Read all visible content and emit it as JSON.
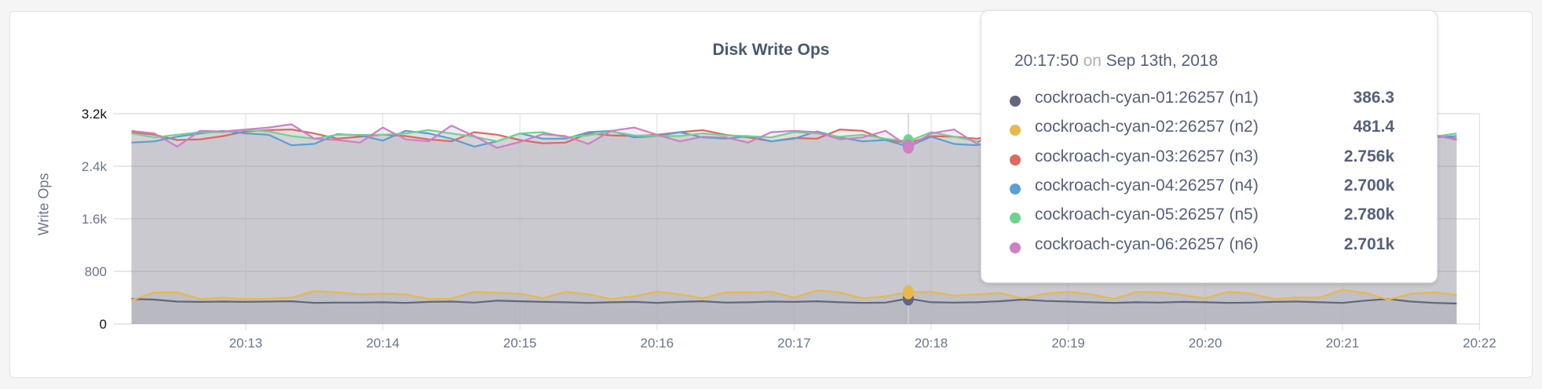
{
  "chart_data": {
    "type": "area",
    "title": "Disk Write Ops",
    "ylabel": "Write Ops",
    "xlabel": "",
    "ylim": [
      0,
      3200
    ],
    "yticks": [
      "0",
      "800",
      "1.6k",
      "2.4k",
      "3.2k"
    ],
    "ytick_values": [
      0,
      800,
      1600,
      2400,
      3200
    ],
    "xticks": [
      "20:13",
      "20:14",
      "20:15",
      "20:16",
      "20:17",
      "20:18",
      "20:19",
      "20:20",
      "20:21",
      "20:22"
    ],
    "grid": true,
    "x": [
      "20:12:10",
      "20:12:20",
      "20:12:30",
      "20:12:40",
      "20:12:50",
      "20:13:00",
      "20:13:10",
      "20:13:20",
      "20:13:30",
      "20:13:40",
      "20:13:50",
      "20:14:00",
      "20:14:10",
      "20:14:20",
      "20:14:30",
      "20:14:40",
      "20:14:50",
      "20:15:00",
      "20:15:10",
      "20:15:20",
      "20:15:30",
      "20:15:40",
      "20:15:50",
      "20:16:00",
      "20:16:10",
      "20:16:20",
      "20:16:30",
      "20:16:40",
      "20:16:50",
      "20:17:00",
      "20:17:10",
      "20:17:20",
      "20:17:30",
      "20:17:40",
      "20:17:50",
      "20:18:00",
      "20:18:10",
      "20:18:20",
      "20:18:30",
      "20:18:40",
      "20:18:50",
      "20:19:00",
      "20:19:10",
      "20:19:20",
      "20:19:30",
      "20:19:40",
      "20:19:50",
      "20:20:00",
      "20:20:10",
      "20:20:20",
      "20:20:30",
      "20:20:40",
      "20:20:50",
      "20:21:00",
      "20:21:10",
      "20:21:20",
      "20:21:30",
      "20:21:40",
      "20:21:50"
    ],
    "series": [
      {
        "name": "cockroach-cyan-01:26257 (n1)",
        "color": "#5f6680",
        "values": [
          380,
          370,
          340,
          335,
          340,
          335,
          340,
          345,
          320,
          325,
          325,
          330,
          320,
          335,
          340,
          325,
          355,
          345,
          335,
          330,
          320,
          330,
          335,
          320,
          335,
          345,
          325,
          330,
          340,
          335,
          345,
          330,
          320,
          325,
          386,
          330,
          325,
          330,
          345,
          370,
          350,
          340,
          330,
          320,
          330,
          325,
          335,
          330,
          320,
          325,
          335,
          340,
          330,
          320,
          355,
          380,
          340,
          320,
          310
        ]
      },
      {
        "name": "cockroach-cyan-02:26257 (n2)",
        "color": "#e8b84a",
        "values": [
          360,
          480,
          480,
          380,
          400,
          380,
          385,
          400,
          500,
          480,
          450,
          460,
          450,
          380,
          385,
          490,
          470,
          460,
          390,
          490,
          450,
          380,
          420,
          490,
          450,
          390,
          480,
          480,
          490,
          400,
          510,
          480,
          390,
          420,
          481.4,
          490,
          430,
          450,
          470,
          390,
          460,
          490,
          450,
          380,
          490,
          480,
          440,
          390,
          490,
          460,
          380,
          400,
          400,
          520,
          470,
          370,
          460,
          480,
          440
        ]
      },
      {
        "name": "cockroach-cyan-03:26257 (n3)",
        "color": "#e0665e",
        "values": [
          2920,
          2880,
          2800,
          2810,
          2860,
          2930,
          2950,
          2960,
          2900,
          2820,
          2850,
          2880,
          2860,
          2810,
          2780,
          2920,
          2880,
          2800,
          2750,
          2760,
          2900,
          2870,
          2860,
          2880,
          2920,
          2950,
          2880,
          2840,
          2780,
          2830,
          2820,
          2960,
          2940,
          2800,
          2756,
          2860,
          2850,
          2820,
          2880,
          2830,
          2880,
          2870,
          2860,
          2900,
          2930,
          2860,
          2880,
          2840,
          2860,
          2870,
          2850,
          2900,
          2880,
          2860,
          2850,
          2860,
          2840,
          2870,
          2820
        ]
      },
      {
        "name": "cockroach-cyan-04:26257 (n4)",
        "color": "#5c9ed2",
        "values": [
          2760,
          2780,
          2850,
          2900,
          2940,
          2900,
          2880,
          2720,
          2740,
          2890,
          2870,
          2790,
          2940,
          2900,
          2820,
          2700,
          2780,
          2900,
          2820,
          2820,
          2920,
          2940,
          2840,
          2860,
          2920,
          2840,
          2820,
          2860,
          2780,
          2820,
          2930,
          2840,
          2780,
          2800,
          2700,
          2850,
          2740,
          2720,
          2800,
          2760,
          2850,
          2760,
          2800,
          2840,
          2820,
          2850,
          2860,
          2830,
          2870,
          2840,
          2800,
          2860,
          2880,
          2870,
          2830,
          2850,
          2860,
          2840,
          2860
        ]
      },
      {
        "name": "cockroach-cyan-05:26257 (n5)",
        "color": "#6fd38f",
        "values": [
          2900,
          2840,
          2880,
          2920,
          2920,
          2950,
          2930,
          2860,
          2820,
          2880,
          2880,
          2880,
          2900,
          2950,
          2900,
          2850,
          2780,
          2900,
          2920,
          2840,
          2870,
          2930,
          2870,
          2860,
          2860,
          2900,
          2870,
          2860,
          2840,
          2920,
          2900,
          2850,
          2880,
          2820,
          2780,
          2920,
          2850,
          2780,
          2830,
          2780,
          2960,
          2860,
          2870,
          2840,
          2880,
          2870,
          2860,
          2880,
          2840,
          2870,
          2860,
          2880,
          2870,
          2860,
          2880,
          2860,
          2870,
          2850,
          2900
        ]
      },
      {
        "name": "cockroach-cyan-06:26257 (n6)",
        "color": "#cf7fc4",
        "values": [
          2940,
          2900,
          2700,
          2940,
          2930,
          2960,
          2990,
          3040,
          2820,
          2800,
          2760,
          2990,
          2810,
          2780,
          3020,
          2860,
          2680,
          2770,
          2890,
          2860,
          2740,
          2940,
          2990,
          2880,
          2780,
          2850,
          2840,
          2760,
          2920,
          2940,
          2920,
          2810,
          2840,
          2940,
          2701,
          2900,
          2960,
          2740,
          3090,
          2760,
          2870,
          2900,
          2890,
          2860,
          2870,
          2890,
          2870,
          2880,
          2870,
          2860,
          2880,
          2870,
          2900,
          2880,
          2870,
          2860,
          2850,
          2880,
          2800
        ]
      }
    ],
    "hover": {
      "x": "20:17:50"
    }
  },
  "tooltip": {
    "time": "20:17:50",
    "on": "on",
    "date": "Sep 13th, 2018",
    "rows": [
      {
        "name": "cockroach-cyan-01:26257 (n1)",
        "value": "386.3",
        "color": "#5f6680"
      },
      {
        "name": "cockroach-cyan-02:26257 (n2)",
        "value": "481.4",
        "color": "#e8b84a"
      },
      {
        "name": "cockroach-cyan-03:26257 (n3)",
        "value": "2.756k",
        "color": "#e0665e"
      },
      {
        "name": "cockroach-cyan-04:26257 (n4)",
        "value": "2.700k",
        "color": "#5c9ed2"
      },
      {
        "name": "cockroach-cyan-05:26257 (n5)",
        "value": "2.780k",
        "color": "#6fd38f"
      },
      {
        "name": "cockroach-cyan-06:26257 (n6)",
        "value": "2.701k",
        "color": "#cf7fc4"
      }
    ]
  }
}
